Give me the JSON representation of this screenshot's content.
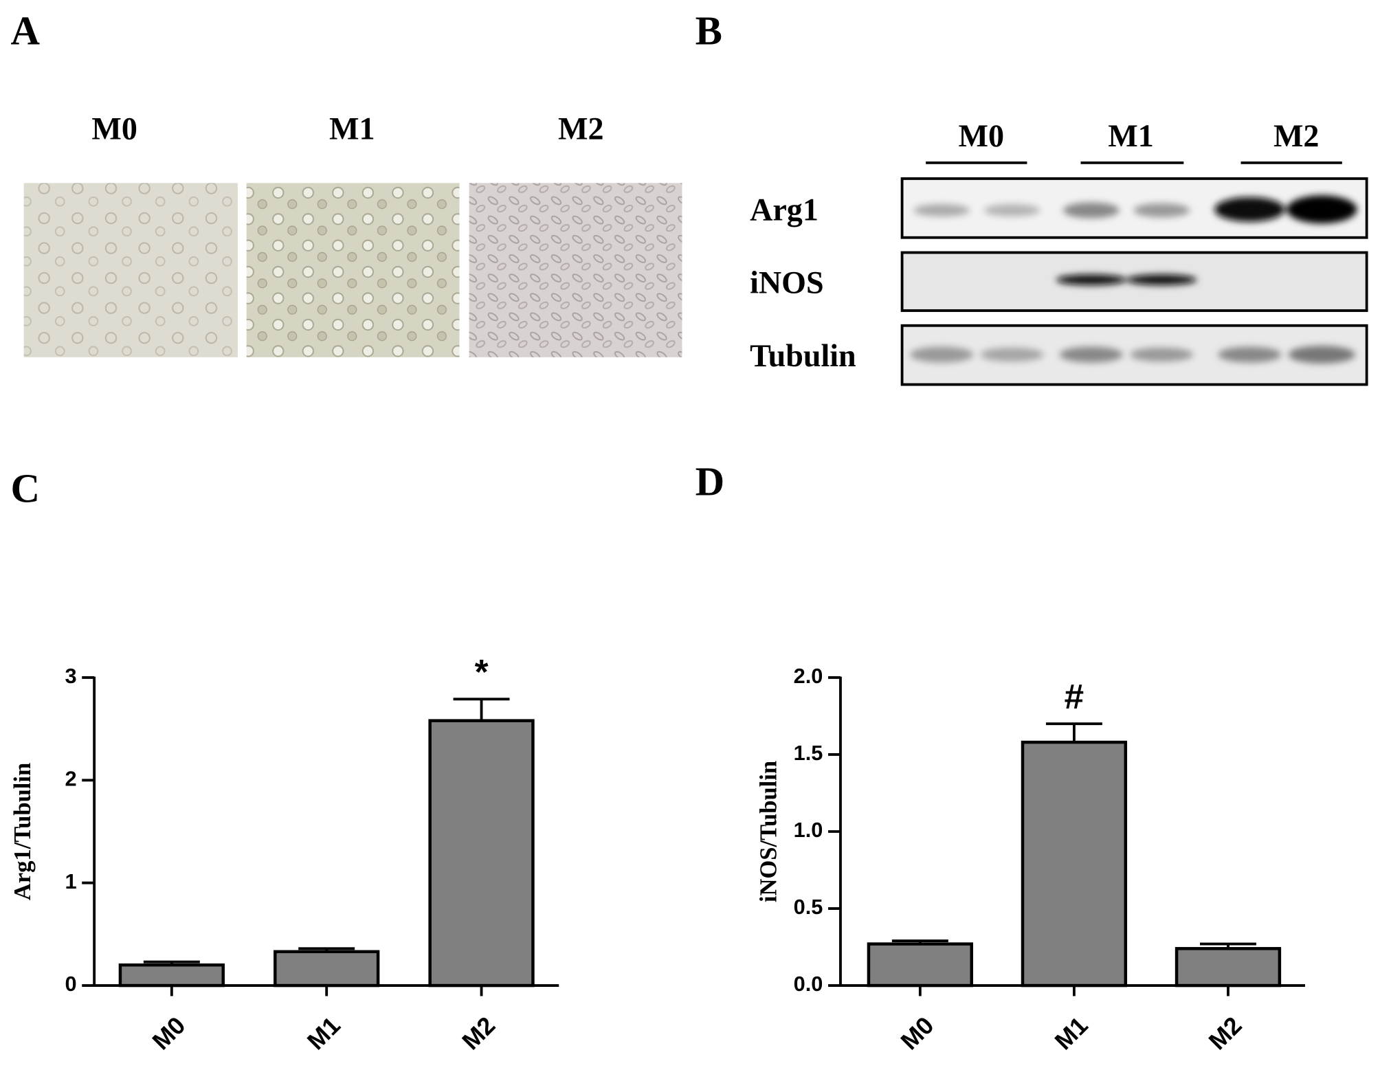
{
  "panel_labels": [
    "A",
    "B",
    "C",
    "D"
  ],
  "micrographs": {
    "labels": [
      "M0",
      "M1",
      "M2"
    ]
  },
  "western_blot": {
    "groups": [
      "M0",
      "M1",
      "M2"
    ],
    "rows": [
      "Arg1",
      "iNOS",
      "Tubulin"
    ]
  },
  "chart_data": [
    {
      "type": "bar",
      "y_label": "Arg1/Tubulin",
      "categories": [
        "M0",
        "M1",
        "M2"
      ],
      "values": [
        0.2,
        0.33,
        2.58
      ],
      "errors": [
        0.03,
        0.03,
        0.21
      ],
      "annotations": [
        null,
        null,
        "*"
      ],
      "color": "#808080",
      "ylim": [
        0,
        3
      ],
      "yticks": [
        0,
        1,
        2,
        3
      ]
    },
    {
      "type": "bar",
      "y_label": "iNOS/Tubulin",
      "categories": [
        "M0",
        "M1",
        "M2"
      ],
      "values": [
        0.27,
        1.58,
        0.24
      ],
      "errors": [
        0.02,
        0.12,
        0.03
      ],
      "annotations": [
        null,
        "#",
        null
      ],
      "color": "#808080",
      "ylim": [
        0,
        2
      ],
      "yticks": [
        {
          "value": 0,
          "label": "0.0"
        },
        0.5,
        {
          "value": 1,
          "label": "1.0"
        },
        1.5,
        {
          "value": 2,
          "label": "2.0"
        }
      ]
    }
  ]
}
